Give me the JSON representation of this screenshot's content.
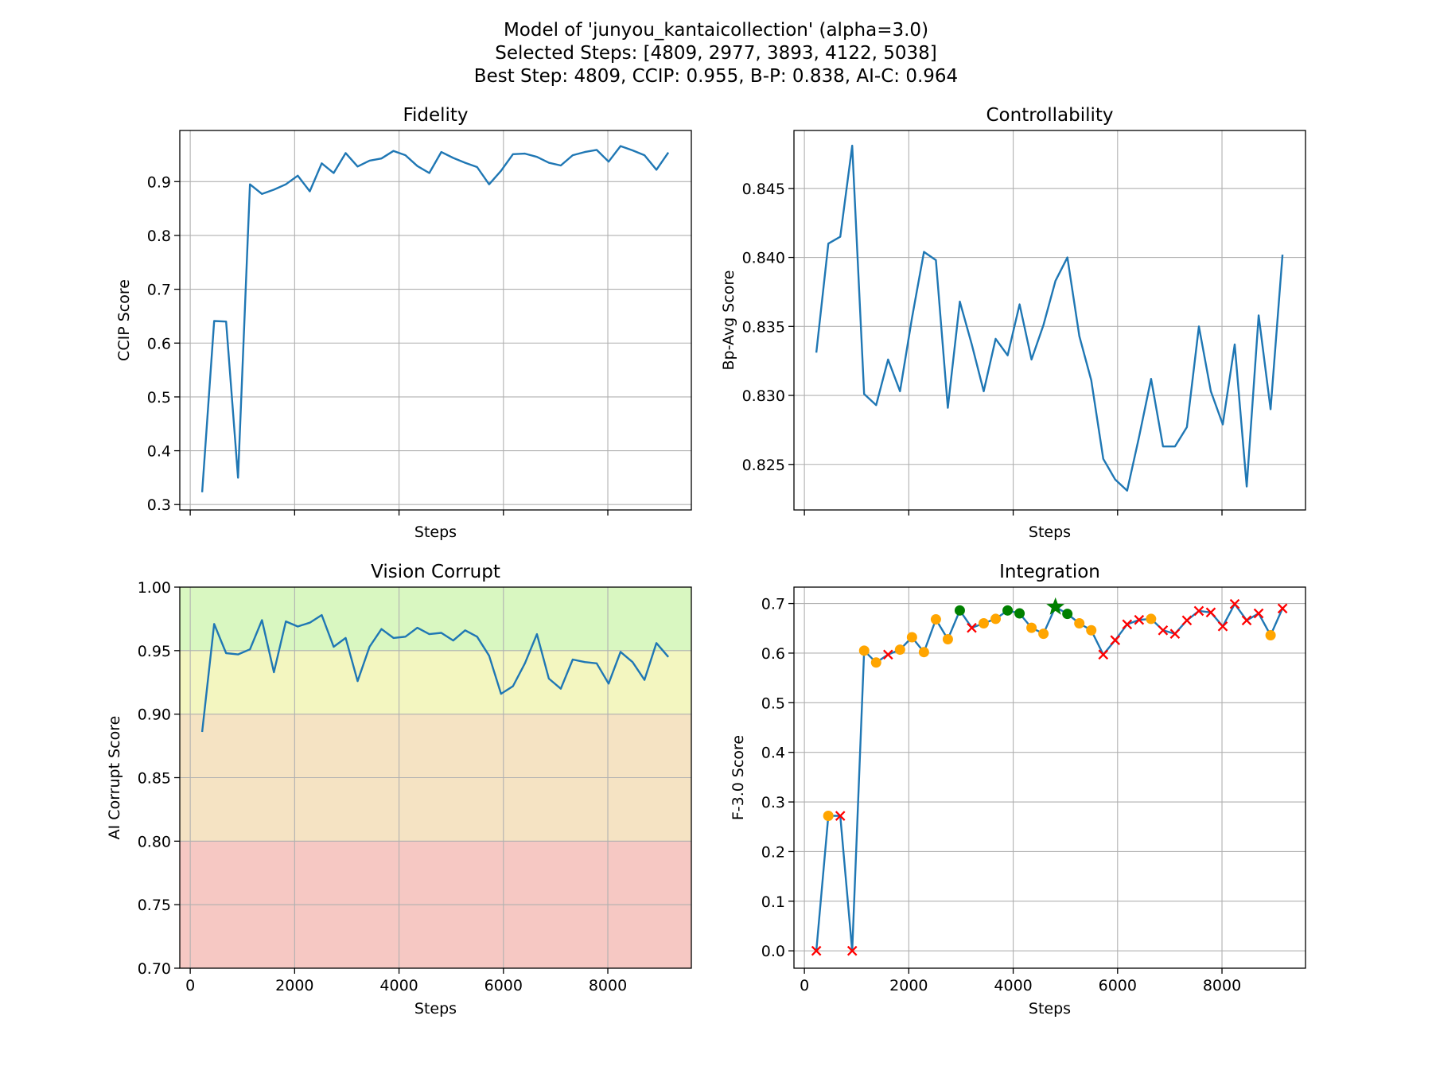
{
  "figure": {
    "title_lines": [
      "Model of 'junyou_kantaicollection' (alpha=3.0)",
      "Selected Steps: [4809, 2977, 3893, 4122, 5038]",
      "Best Step: 4809, CCIP: 0.955, B-P: 0.838, AI-C: 0.964"
    ]
  },
  "colors": {
    "line": "#1f77b4",
    "orange_marker": "#ffa500",
    "green_marker": "#008000",
    "red_marker": "#ff0000",
    "band_green": "#d9f7c1",
    "band_yellow": "#f3f6c0",
    "band_orange": "#f5e3c3",
    "band_red": "#f6c8c3"
  },
  "chart_data": [
    {
      "id": "fidelity",
      "type": "line",
      "title": "Fidelity",
      "xlabel": "Steps",
      "ylabel": "CCIP Score",
      "xlim": [
        -200,
        9600
      ],
      "ylim": [
        0.29,
        0.995
      ],
      "xticks": [
        0,
        2000,
        4000,
        6000,
        8000
      ],
      "show_xtick_labels": false,
      "yticks": [
        0.3,
        0.4,
        0.5,
        0.6,
        0.7,
        0.8,
        0.9
      ],
      "ytick_labels": [
        "0.3",
        "0.4",
        "0.5",
        "0.6",
        "0.7",
        "0.8",
        "0.9"
      ],
      "grid": true,
      "x": [
        229,
        458,
        687,
        916,
        1145,
        1374,
        1603,
        1832,
        2061,
        2290,
        2519,
        2748,
        2977,
        3206,
        3435,
        3664,
        3893,
        4122,
        4351,
        4580,
        4809,
        5038,
        5267,
        5496,
        5725,
        5954,
        6183,
        6412,
        6641,
        6870,
        7099,
        7328,
        7557,
        7786,
        8015,
        8244,
        8473,
        8702,
        8931,
        9160
      ],
      "y": [
        0.323,
        0.641,
        0.64,
        0.35,
        0.895,
        0.877,
        0.885,
        0.895,
        0.911,
        0.882,
        0.934,
        0.916,
        0.953,
        0.928,
        0.939,
        0.943,
        0.957,
        0.949,
        0.929,
        0.916,
        0.955,
        0.944,
        0.935,
        0.927,
        0.895,
        0.92,
        0.951,
        0.952,
        0.946,
        0.935,
        0.93,
        0.949,
        0.955,
        0.959,
        0.937,
        0.966,
        0.958,
        0.949,
        0.922,
        0.954
      ]
    },
    {
      "id": "controllability",
      "type": "line",
      "title": "Controllability",
      "xlabel": "Steps",
      "ylabel": "Bp-Avg Score",
      "xlim": [
        -200,
        9600
      ],
      "ylim": [
        0.8217,
        0.8492
      ],
      "xticks": [
        0,
        2000,
        4000,
        6000,
        8000
      ],
      "show_xtick_labels": false,
      "yticks": [
        0.825,
        0.83,
        0.835,
        0.84,
        0.845
      ],
      "ytick_labels": [
        "0.825",
        "0.830",
        "0.835",
        "0.840",
        "0.845"
      ],
      "grid": true,
      "x": [
        229,
        458,
        687,
        916,
        1145,
        1374,
        1603,
        1832,
        2061,
        2290,
        2519,
        2748,
        2977,
        3206,
        3435,
        3664,
        3893,
        4122,
        4351,
        4580,
        4809,
        5038,
        5267,
        5496,
        5725,
        5954,
        6183,
        6412,
        6641,
        6870,
        7099,
        7328,
        7557,
        7786,
        8015,
        8244,
        8473,
        8702,
        8931,
        9160
      ],
      "y": [
        0.8331,
        0.841,
        0.8415,
        0.8481,
        0.8301,
        0.8293,
        0.8326,
        0.8303,
        0.8356,
        0.8404,
        0.8398,
        0.8291,
        0.8368,
        0.8337,
        0.8303,
        0.8341,
        0.8329,
        0.8366,
        0.8326,
        0.8351,
        0.8383,
        0.84,
        0.8343,
        0.8311,
        0.8254,
        0.8239,
        0.8231,
        0.827,
        0.8312,
        0.8263,
        0.8263,
        0.8277,
        0.835,
        0.8303,
        0.8279,
        0.8337,
        0.8234,
        0.8358,
        0.829,
        0.8402
      ]
    },
    {
      "id": "vision_corrupt",
      "type": "line",
      "title": "Vision Corrupt",
      "xlabel": "Steps",
      "ylabel": "AI Corrupt Score",
      "xlim": [
        -200,
        9600
      ],
      "ylim": [
        0.7,
        1.0
      ],
      "xticks": [
        0,
        2000,
        4000,
        6000,
        8000
      ],
      "xtick_labels": [
        "0",
        "2000",
        "4000",
        "6000",
        "8000"
      ],
      "show_xtick_labels": true,
      "yticks": [
        0.7,
        0.75,
        0.8,
        0.85,
        0.9,
        0.95,
        1.0
      ],
      "ytick_labels": [
        "0.70",
        "0.75",
        "0.80",
        "0.85",
        "0.90",
        "0.95",
        "1.00"
      ],
      "grid": true,
      "bands": [
        {
          "from": 0.95,
          "to": 1.0,
          "color_key": "band_green"
        },
        {
          "from": 0.9,
          "to": 0.95,
          "color_key": "band_yellow"
        },
        {
          "from": 0.8,
          "to": 0.9,
          "color_key": "band_orange"
        },
        {
          "from": 0.7,
          "to": 0.8,
          "color_key": "band_red"
        }
      ],
      "x": [
        229,
        458,
        687,
        916,
        1145,
        1374,
        1603,
        1832,
        2061,
        2290,
        2519,
        2748,
        2977,
        3206,
        3435,
        3664,
        3893,
        4122,
        4351,
        4580,
        4809,
        5038,
        5267,
        5496,
        5725,
        5954,
        6183,
        6412,
        6641,
        6870,
        7099,
        7328,
        7557,
        7786,
        8015,
        8244,
        8473,
        8702,
        8931,
        9160
      ],
      "y": [
        0.886,
        0.971,
        0.948,
        0.947,
        0.951,
        0.974,
        0.933,
        0.973,
        0.969,
        0.972,
        0.978,
        0.953,
        0.96,
        0.926,
        0.953,
        0.967,
        0.96,
        0.961,
        0.968,
        0.963,
        0.964,
        0.958,
        0.966,
        0.961,
        0.946,
        0.916,
        0.922,
        0.94,
        0.963,
        0.928,
        0.92,
        0.943,
        0.941,
        0.94,
        0.924,
        0.949,
        0.941,
        0.927,
        0.956,
        0.945
      ]
    },
    {
      "id": "integration",
      "type": "line",
      "title": "Integration",
      "xlabel": "Steps",
      "ylabel": "F-3.0 Score",
      "xlim": [
        -200,
        9600
      ],
      "ylim": [
        -0.035,
        0.733
      ],
      "xticks": [
        0,
        2000,
        4000,
        6000,
        8000
      ],
      "xtick_labels": [
        "0",
        "2000",
        "4000",
        "6000",
        "8000"
      ],
      "show_xtick_labels": true,
      "yticks": [
        0.0,
        0.1,
        0.2,
        0.3,
        0.4,
        0.5,
        0.6,
        0.7
      ],
      "ytick_labels": [
        "0.0",
        "0.1",
        "0.2",
        "0.3",
        "0.4",
        "0.5",
        "0.6",
        "0.7"
      ],
      "grid": true,
      "x": [
        229,
        458,
        687,
        916,
        1145,
        1374,
        1603,
        1832,
        2061,
        2290,
        2519,
        2748,
        2977,
        3206,
        3435,
        3664,
        3893,
        4122,
        4351,
        4580,
        4809,
        5038,
        5267,
        5496,
        5725,
        5954,
        6183,
        6412,
        6641,
        6870,
        7099,
        7328,
        7557,
        7786,
        8015,
        8244,
        8473,
        8702,
        8931,
        9160
      ],
      "y": [
        0.0,
        0.272,
        0.272,
        0.0,
        0.605,
        0.581,
        0.597,
        0.607,
        0.632,
        0.602,
        0.668,
        0.628,
        0.686,
        0.651,
        0.66,
        0.669,
        0.686,
        0.68,
        0.651,
        0.639,
        0.693,
        0.679,
        0.66,
        0.646,
        0.597,
        0.626,
        0.658,
        0.667,
        0.669,
        0.646,
        0.639,
        0.666,
        0.685,
        0.682,
        0.654,
        0.699,
        0.666,
        0.68,
        0.636,
        0.69
      ],
      "markers": [
        "x",
        "o",
        "x",
        "x",
        "o",
        "o",
        "x",
        "o",
        "o",
        "o",
        "o",
        "o",
        "g",
        "x",
        "o",
        "o",
        "g",
        "g",
        "o",
        "o",
        "star",
        "g",
        "o",
        "o",
        "x",
        "x",
        "x",
        "x",
        "o",
        "x",
        "x",
        "x",
        "x",
        "x",
        "x",
        "x",
        "x",
        "x",
        "o",
        "x"
      ]
    }
  ]
}
